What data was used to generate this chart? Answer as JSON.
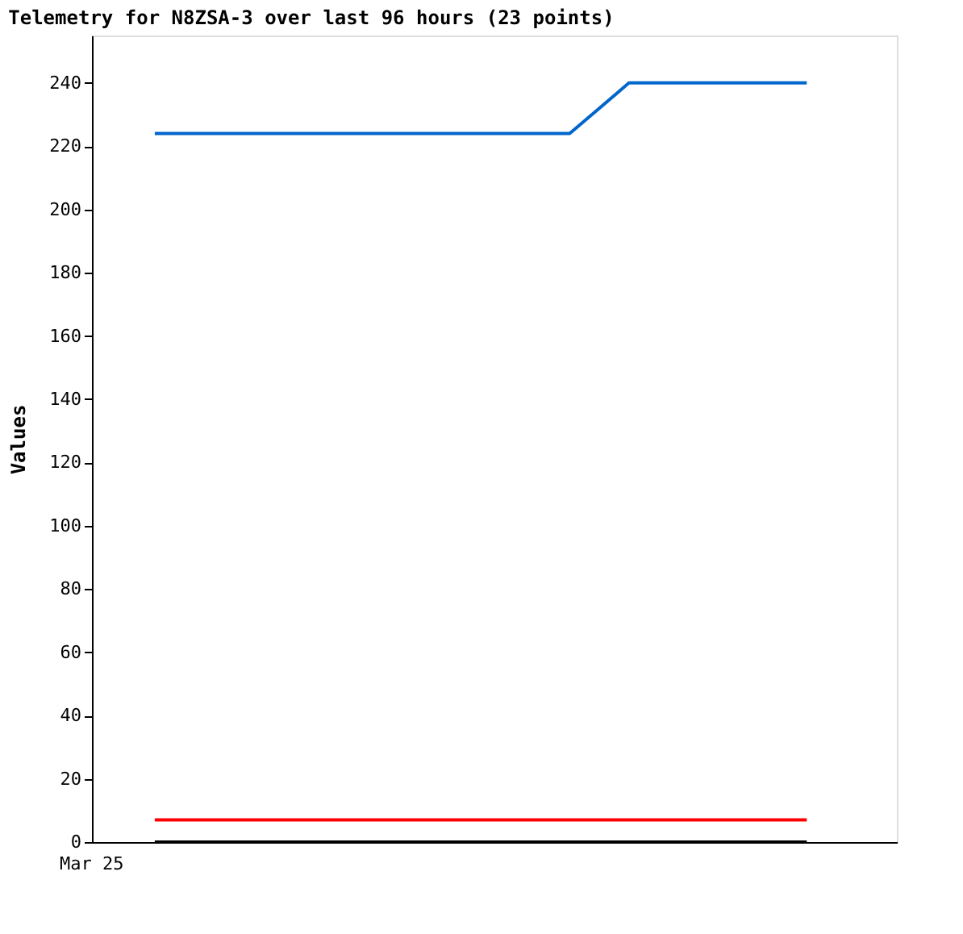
{
  "chart_data": {
    "type": "line",
    "title": "Telemetry for N8ZSA-3 over last 96 hours (23 points)",
    "ylabel": "Values",
    "annotations": [
      "Mar 25"
    ],
    "categories": [
      null,
      null,
      null,
      null,
      null,
      null,
      null,
      null,
      null,
      null,
      null,
      null,
      null,
      null,
      null,
      null,
      null,
      null,
      null,
      null,
      null,
      null,
      null
    ],
    "ylim": [
      0,
      255
    ],
    "yticks": [
      0,
      20,
      40,
      60,
      80,
      100,
      120,
      140,
      160,
      180,
      200,
      220,
      240
    ],
    "grid": false,
    "legend": false,
    "marker": "none",
    "line_style": "solid",
    "series": [
      {
        "color": "#0066cc",
        "values": [
          224,
          224,
          224,
          224,
          224,
          224,
          224,
          224,
          224,
          224,
          224,
          224,
          224,
          224,
          224,
          232,
          240,
          240,
          240,
          240,
          240,
          240,
          240
        ]
      },
      {
        "color": "#ff0000",
        "values": [
          7,
          7,
          7,
          7,
          7,
          7,
          7,
          7,
          7,
          7,
          7,
          7,
          7,
          7,
          7,
          7,
          7,
          7,
          7,
          7,
          7,
          7,
          7
        ]
      },
      {
        "color": "#000000",
        "values": [
          0,
          0,
          0,
          0,
          0,
          0,
          0,
          0,
          0,
          0,
          0,
          0,
          0,
          0,
          0,
          0,
          0,
          0,
          0,
          0,
          0,
          0,
          0
        ]
      }
    ]
  }
}
